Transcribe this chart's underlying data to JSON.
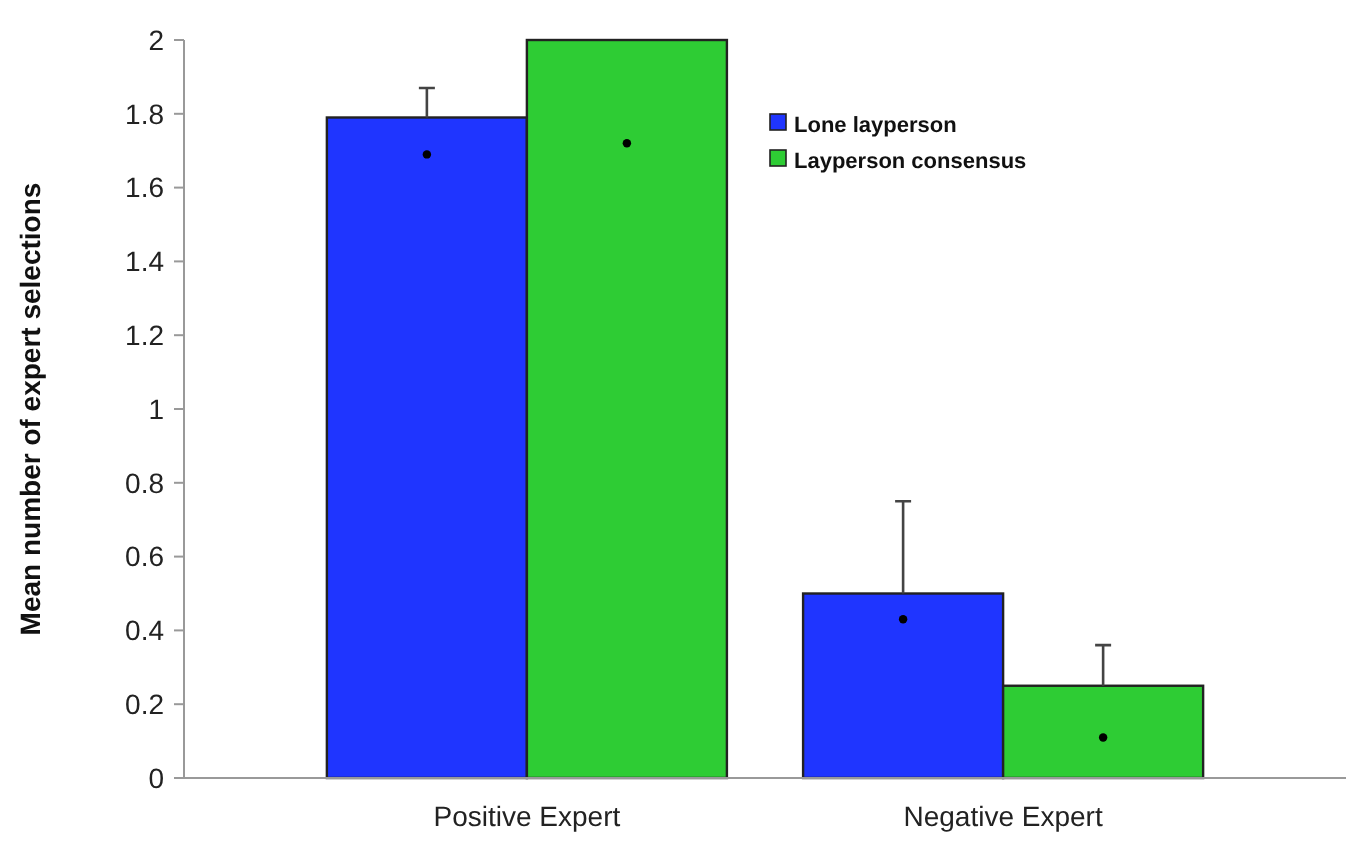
{
  "chart_data": {
    "type": "bar",
    "ylabel": "Mean number of expert selections",
    "categories": [
      "Positive Expert",
      "Negative Expert"
    ],
    "ylim": [
      0,
      2
    ],
    "yticks": [
      0,
      0.2,
      0.4,
      0.6,
      0.8,
      1,
      1.2,
      1.4,
      1.6,
      1.8,
      2
    ],
    "grid": false,
    "legend": "top right",
    "series": [
      {
        "name": "Lone layperson",
        "color": "#1f35ff",
        "values": [
          1.79,
          0.5
        ],
        "errors": [
          [
            1.79,
            1.87
          ],
          [
            0.5,
            0.75
          ]
        ]
      },
      {
        "name": "Layperson consensus",
        "color": "#2ecc34",
        "values": [
          2.0,
          0.25
        ],
        "errors": [
          null,
          [
            0.25,
            0.36
          ]
        ]
      },
      {
        "type": "scatter",
        "color": "#000000",
        "x": [
          "Positive Expert",
          "Negative Expert"
        ],
        "values": [
          1.69,
          0.43
        ],
        "marker": "circle"
      },
      {
        "type": "scatter",
        "color": "#000000",
        "x": [
          "Positive Expert",
          "Negative Expert"
        ],
        "values": [
          1.72,
          0.11
        ],
        "marker": "circle"
      }
    ]
  }
}
